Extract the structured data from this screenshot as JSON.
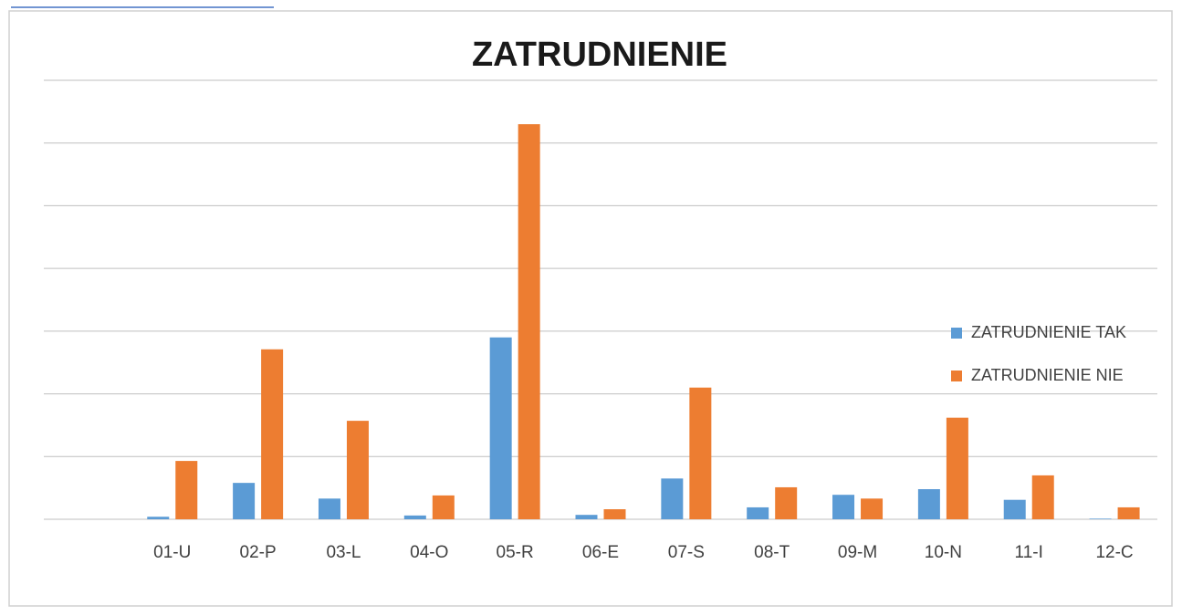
{
  "chart_data": {
    "type": "bar",
    "title": "ZATRUDNIENIE",
    "categories": [
      null,
      "01-U",
      "02-P",
      "03-L",
      "04-O",
      "05-R",
      "06-E",
      "07-S",
      "08-T",
      "09-M",
      "10-N",
      "11-I",
      "12-C"
    ],
    "series": [
      {
        "name": "ZATRUDNIENIE TAK",
        "color": "#5b9bd5",
        "values": [
          null,
          0.04,
          0.58,
          0.33,
          0.06,
          2.9,
          0.07,
          0.65,
          0.19,
          0.39,
          0.48,
          0.31,
          0.01
        ]
      },
      {
        "name": "ZATRUDNIENIE NIE",
        "color": "#ed7d31",
        "values": [
          null,
          0.93,
          2.71,
          1.57,
          0.38,
          6.3,
          0.16,
          2.1,
          0.51,
          0.33,
          1.62,
          0.7,
          0.19
        ]
      }
    ],
    "ylim": [
      0,
      7
    ],
    "yticks": [
      0,
      1,
      2,
      3,
      4,
      5,
      6,
      7
    ],
    "grid": true,
    "legend": "right"
  }
}
